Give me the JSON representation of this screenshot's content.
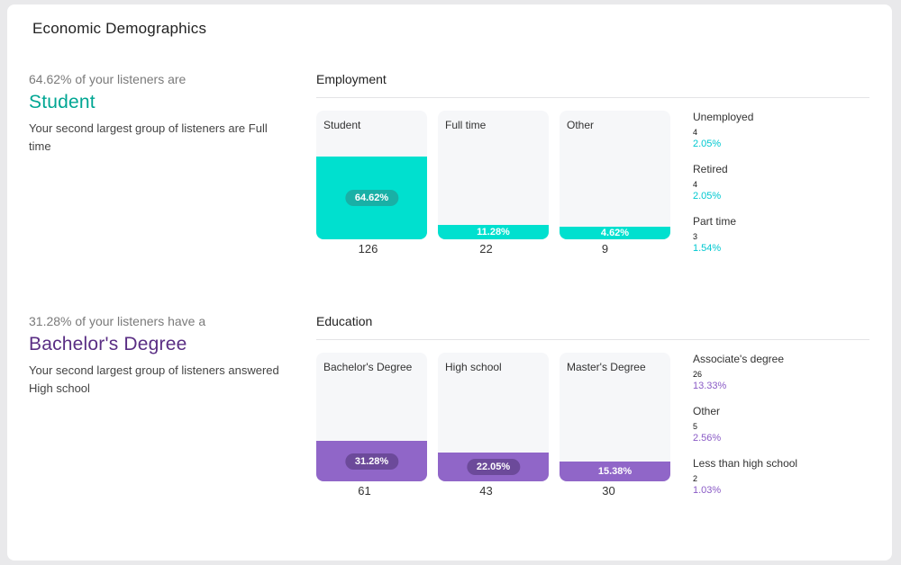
{
  "title": "Economic Demographics",
  "colors": {
    "employment": "#00e0cf",
    "employment_pill": "#19b0a6",
    "employment_text": "#00a693",
    "employment_pct_text": "#00c8d0",
    "education": "#9066c8",
    "education_pill": "#6c4a9a",
    "education_text": "#5a2e84",
    "education_pct_text": "#8a5bc6"
  },
  "employment": {
    "intro": "64.62% of your listeners are",
    "highlight": "Student",
    "note": "Your second largest group of listeners are Full time",
    "section_title": "Employment",
    "bars": [
      {
        "label": "Student",
        "percent": "64.62%",
        "count": "126",
        "fill": 0.6462
      },
      {
        "label": "Full time",
        "percent": "11.28%",
        "count": "22",
        "fill": 0.1128
      },
      {
        "label": "Other",
        "percent": "4.62%",
        "count": "9",
        "fill": 0.0462
      }
    ],
    "others": [
      {
        "label": "Unemployed",
        "count": "4",
        "percent": "2.05%"
      },
      {
        "label": "Retired",
        "count": "4",
        "percent": "2.05%"
      },
      {
        "label": "Part time",
        "count": "3",
        "percent": "1.54%"
      }
    ]
  },
  "education": {
    "intro": "31.28% of your listeners have a",
    "highlight": "Bachelor's Degree",
    "note": "Your second largest group of listeners answered High school",
    "section_title": "Education",
    "bars": [
      {
        "label": "Bachelor's Degree",
        "percent": "31.28%",
        "count": "61",
        "fill": 0.3128
      },
      {
        "label": "High school",
        "percent": "22.05%",
        "count": "43",
        "fill": 0.2205
      },
      {
        "label": "Master's Degree",
        "percent": "15.38%",
        "count": "30",
        "fill": 0.1538
      }
    ],
    "others": [
      {
        "label": "Associate's degree",
        "count": "26",
        "percent": "13.33%"
      },
      {
        "label": "Other",
        "count": "5",
        "percent": "2.56%"
      },
      {
        "label": "Less than high school",
        "count": "2",
        "percent": "1.03%"
      }
    ]
  }
}
